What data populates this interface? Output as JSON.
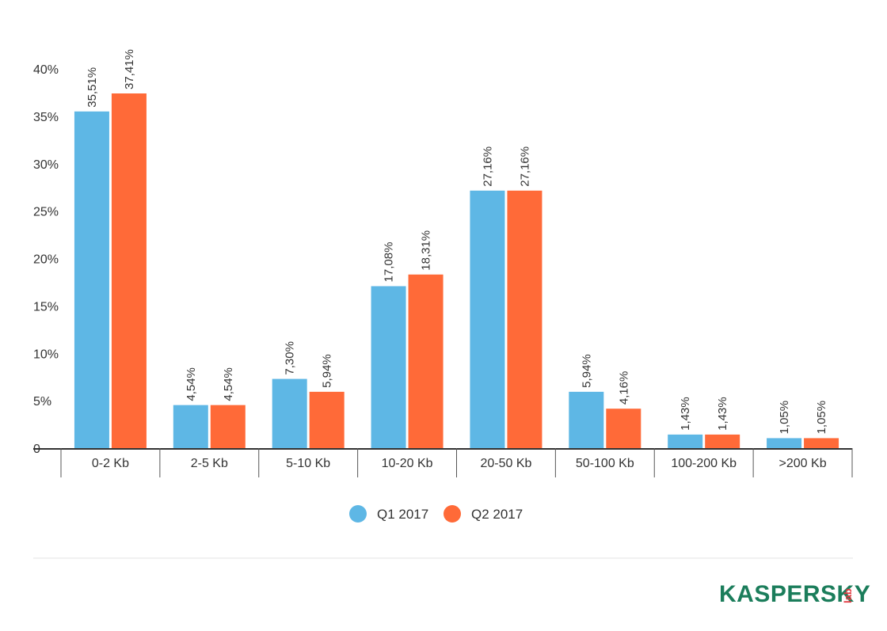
{
  "chart_data": {
    "type": "bar",
    "categories": [
      "0-2 Kb",
      "2-5 Kb",
      "5-10 Kb",
      "10-20 Kb",
      "20-50 Kb",
      "50-100 Kb",
      "100-200 Kb",
      ">200 Kb"
    ],
    "series": [
      {
        "name": "Q1 2017",
        "color": "#5eb7e5",
        "values": [
          35.51,
          4.54,
          7.3,
          17.08,
          27.16,
          5.94,
          1.43,
          1.05
        ],
        "labels": [
          "35,51%",
          "4,54%",
          "7,30%",
          "17,08%",
          "27,16%",
          "5,94%",
          "1,43%",
          "1,05%"
        ]
      },
      {
        "name": "Q2 2017",
        "color": "#ff6a38",
        "values": [
          37.41,
          4.54,
          5.94,
          18.31,
          27.16,
          4.16,
          1.43,
          1.05
        ],
        "labels": [
          "37,41%",
          "4,54%",
          "5,94%",
          "18,31%",
          "27,16%",
          "4,16%",
          "1,43%",
          "1,05%"
        ]
      }
    ],
    "yticks": [
      {
        "value": 0,
        "label": "0"
      },
      {
        "value": 5,
        "label": "5%"
      },
      {
        "value": 10,
        "label": "10%"
      },
      {
        "value": 15,
        "label": "15%"
      },
      {
        "value": 20,
        "label": "20%"
      },
      {
        "value": 25,
        "label": "25%"
      },
      {
        "value": 30,
        "label": "30%"
      },
      {
        "value": 35,
        "label": "35%"
      },
      {
        "value": 40,
        "label": "40%"
      }
    ],
    "ylim": [
      0,
      40
    ],
    "title": "",
    "xlabel": "",
    "ylabel": "",
    "grid": false,
    "legend_position": "bottom-center"
  },
  "logo": {
    "text": "KASPERSKY",
    "suffix": "lab",
    "color": "#1b7d5b",
    "accent": "#e2383f"
  }
}
